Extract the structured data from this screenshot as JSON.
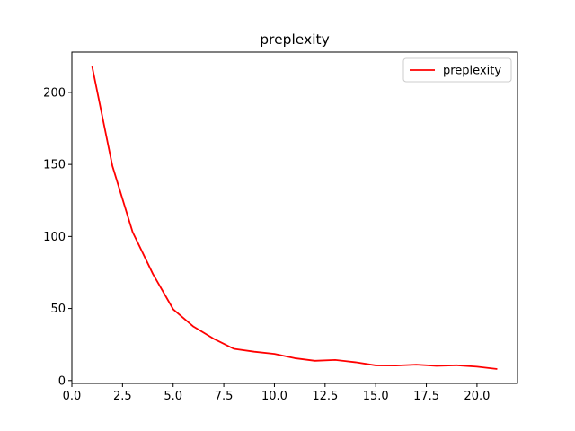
{
  "chart_data": {
    "type": "line",
    "title": "preplexity",
    "xlabel": "",
    "ylabel": "",
    "xlim": [
      0,
      22
    ],
    "ylim": [
      -2,
      228
    ],
    "xticks": [
      0,
      2.5,
      5,
      7.5,
      10,
      12.5,
      15,
      17.5,
      20
    ],
    "xtick_labels": [
      "0.0",
      "2.5",
      "5.0",
      "7.5",
      "10.0",
      "12.5",
      "15.0",
      "17.5",
      "20.0"
    ],
    "yticks": [
      0,
      50,
      100,
      150,
      200
    ],
    "ytick_labels": [
      "0",
      "50",
      "100",
      "150",
      "200"
    ],
    "grid": false,
    "legend": {
      "position": "top-right"
    },
    "series": [
      {
        "name": "preplexity",
        "color": "#ff0000",
        "x": [
          1,
          2,
          3,
          4,
          5,
          6,
          7,
          8,
          9,
          10,
          11,
          12,
          13,
          14,
          15,
          16,
          17,
          18,
          19,
          20,
          21
        ],
        "y": [
          218,
          149,
          103,
          74,
          49.5,
          37.5,
          29,
          22,
          20,
          18.5,
          15.5,
          13.7,
          14.3,
          12.7,
          10.5,
          10.4,
          11,
          10.2,
          10.6,
          9.6,
          8
        ]
      }
    ]
  }
}
